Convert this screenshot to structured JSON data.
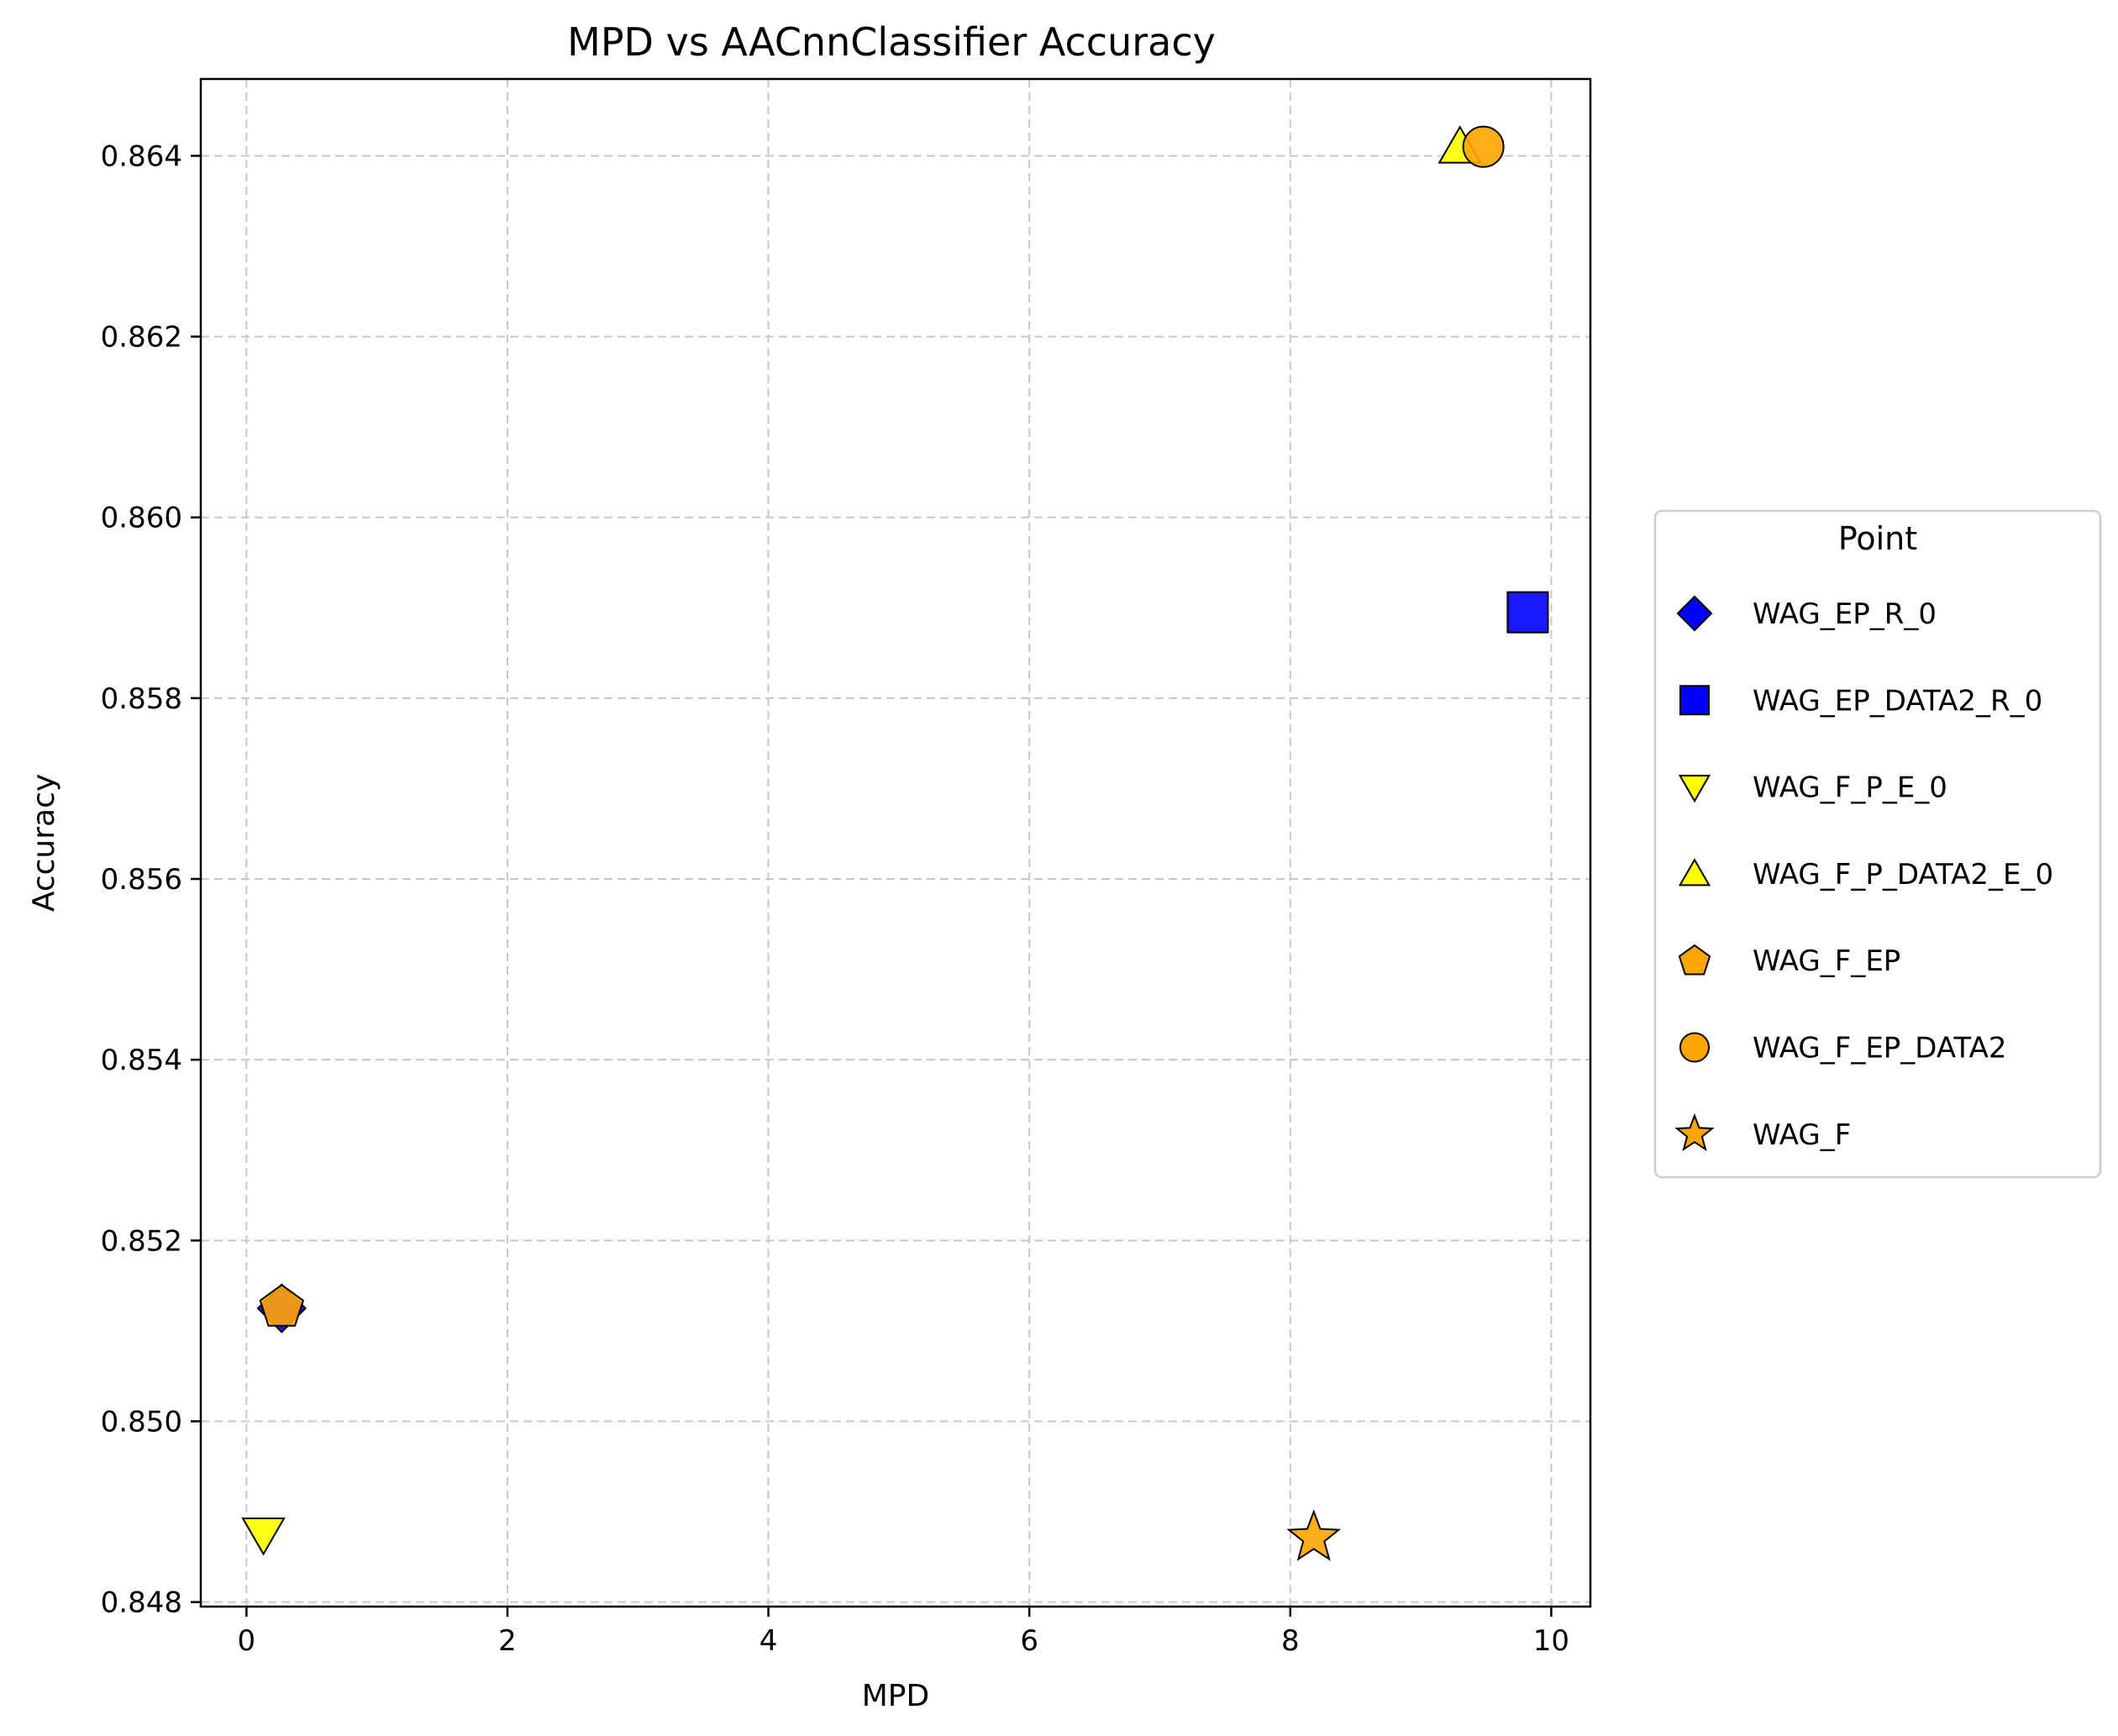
{
  "chart_data": {
    "type": "scatter",
    "title": "MPD vs AACnnClassifier Accuracy",
    "xlabel": "MPD",
    "ylabel": "Accuracy",
    "xlim": [
      -0.35,
      10.3
    ],
    "ylim": [
      0.84795,
      0.86485
    ],
    "x_ticks": [
      0,
      2,
      4,
      6,
      8,
      10
    ],
    "y_ticks": [
      0.848,
      0.85,
      0.852,
      0.854,
      0.856,
      0.858,
      0.86,
      0.862,
      0.864
    ],
    "x_tick_labels": [
      "0",
      "2",
      "4",
      "6",
      "8",
      "10"
    ],
    "y_tick_labels": [
      "0.848",
      "0.850",
      "0.852",
      "0.854",
      "0.856",
      "0.858",
      "0.860",
      "0.862",
      "0.864"
    ],
    "grid": true,
    "legend": {
      "title": "Point",
      "placement": "outside-right"
    },
    "series": [
      {
        "name": "WAG_EP_R_0",
        "marker": "diamond",
        "color": "#0000ff",
        "x": 0.27,
        "y": 0.85125
      },
      {
        "name": "WAG_EP_DATA2_R_0",
        "marker": "square",
        "color": "#0000ff",
        "x": 9.82,
        "y": 0.85895
      },
      {
        "name": "WAG_F_P_E_0",
        "marker": "triangle-down",
        "color": "#ffff00",
        "x": 0.13,
        "y": 0.84875
      },
      {
        "name": "WAG_F_P_DATA2_E_0",
        "marker": "triangle-up",
        "color": "#ffff00",
        "x": 9.3,
        "y": 0.8641
      },
      {
        "name": "WAG_F_EP",
        "marker": "pentagon",
        "color": "#ffa500",
        "x": 0.27,
        "y": 0.85127
      },
      {
        "name": "WAG_F_EP_DATA2",
        "marker": "circle",
        "color": "#ffa500",
        "x": 9.48,
        "y": 0.8641
      },
      {
        "name": "WAG_F",
        "marker": "star",
        "color": "#ffa500",
        "x": 8.18,
        "y": 0.84871
      }
    ]
  }
}
